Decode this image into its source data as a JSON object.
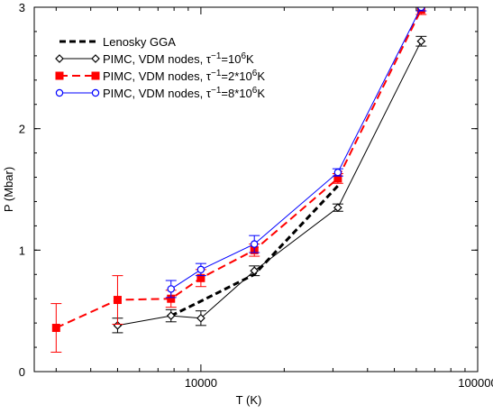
{
  "chart_data": {
    "type": "line",
    "title": "",
    "xlabel": "T (K)",
    "ylabel": "P (Mbar)",
    "xscale": "log",
    "xlim": [
      2500,
      100000
    ],
    "ylim": [
      0,
      3
    ],
    "xticks": [
      10000,
      100000
    ],
    "xtick_labels": [
      "10000",
      "100000"
    ],
    "yticks": [
      0,
      1,
      2,
      3
    ],
    "ytick_labels": [
      "0",
      "1",
      "2",
      "3"
    ],
    "legend_position": "top-left",
    "series": [
      {
        "name": "Lenosky GGA",
        "legend_text": "Lenosky GGA",
        "color": "#000000",
        "style": "dashed-thick",
        "marker": "none",
        "x": [
          7800,
          10000,
          15600,
          31250
        ],
        "y": [
          0.46,
          0.58,
          0.8,
          1.53
        ],
        "err": []
      },
      {
        "name": "PIMC, VDM nodes, tau^-1=10^6K",
        "legend_text": "PIMC, VDM nodes, τ",
        "legend_sup": "−1",
        "legend_tail": "=10",
        "legend_sup2": "6",
        "legend_end": "K",
        "color": "#000000",
        "style": "solid",
        "marker": "diamond-open",
        "x": [
          5000,
          7800,
          10000,
          15600,
          31250,
          62500
        ],
        "y": [
          0.38,
          0.46,
          0.44,
          0.83,
          1.35,
          2.72
        ],
        "err": [
          0.06,
          0.05,
          0.06,
          0.04,
          0.03,
          0.04
        ]
      },
      {
        "name": "PIMC, VDM nodes, tau^-1=2*10^6K",
        "legend_text": "PIMC, VDM nodes, τ",
        "legend_sup": "−1",
        "legend_tail": "=2*10",
        "legend_sup2": "6",
        "legend_end": "K",
        "color": "#ff0000",
        "style": "dashed",
        "marker": "square-filled",
        "x": [
          3000,
          5000,
          7800,
          10000,
          15600,
          31250,
          62500
        ],
        "y": [
          0.36,
          0.59,
          0.6,
          0.77,
          1.0,
          1.59,
          2.98
        ],
        "err": [
          0.2,
          0.2,
          0.07,
          0.07,
          0.05,
          0.04,
          0.04
        ]
      },
      {
        "name": "PIMC, VDM nodes, tau^-1=8*10^6K",
        "legend_text": "PIMC, VDM nodes, τ",
        "legend_sup": "−1",
        "legend_tail": "=8*10",
        "legend_sup2": "6",
        "legend_end": "K",
        "color": "#0000ff",
        "style": "solid",
        "marker": "circle-open",
        "x": [
          7800,
          10000,
          15600,
          31250,
          62500
        ],
        "y": [
          0.68,
          0.84,
          1.05,
          1.64,
          3.0
        ],
        "err": [
          0.07,
          0.05,
          0.07,
          0.03,
          0.03
        ]
      }
    ]
  }
}
